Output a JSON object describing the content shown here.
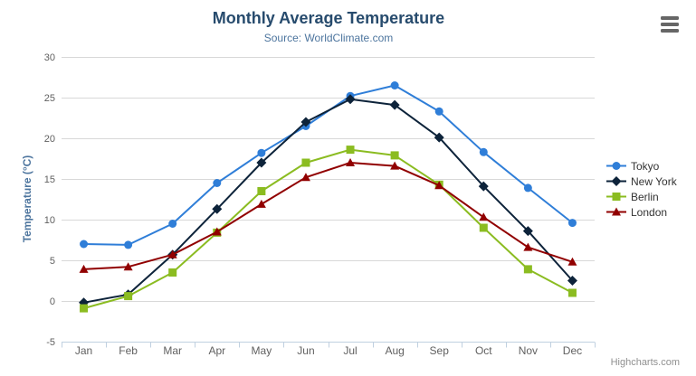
{
  "header": {
    "title": "Monthly Average Temperature",
    "subtitle": "Source: WorldClimate.com"
  },
  "credits": {
    "label": "Highcharts.com"
  },
  "chart_data": {
    "type": "line",
    "title": "Monthly Average Temperature",
    "subtitle": "Source: WorldClimate.com",
    "categories": [
      "Jan",
      "Feb",
      "Mar",
      "Apr",
      "May",
      "Jun",
      "Jul",
      "Aug",
      "Sep",
      "Oct",
      "Nov",
      "Dec"
    ],
    "series": [
      {
        "name": "Tokyo",
        "color": "#2f7ed8",
        "marker": "circle",
        "values": [
          7.0,
          6.9,
          9.5,
          14.5,
          18.2,
          21.5,
          25.2,
          26.5,
          23.3,
          18.3,
          13.9,
          9.6
        ]
      },
      {
        "name": "New York",
        "color": "#0d233a",
        "marker": "diamond",
        "values": [
          -0.2,
          0.8,
          5.7,
          11.3,
          17.0,
          22.0,
          24.8,
          24.1,
          20.1,
          14.1,
          8.6,
          2.5
        ]
      },
      {
        "name": "Berlin",
        "color": "#8bbc21",
        "marker": "square",
        "values": [
          -0.9,
          0.6,
          3.5,
          8.4,
          13.5,
          17.0,
          18.6,
          17.9,
          14.3,
          9.0,
          3.9,
          1.0
        ]
      },
      {
        "name": "London",
        "color": "#910000",
        "marker": "triangle",
        "values": [
          3.9,
          4.2,
          5.7,
          8.5,
          11.9,
          15.2,
          17.0,
          16.6,
          14.2,
          10.3,
          6.6,
          4.8
        ]
      }
    ],
    "xlabel": "",
    "ylabel": "Temperature (°C)",
    "ylim": [
      -5,
      30
    ],
    "yticks": [
      -5,
      0,
      5,
      10,
      15,
      20,
      25,
      30
    ],
    "grid": true,
    "legend_position": "right"
  },
  "colors": {
    "title": "#274b6d",
    "subtitle": "#4d759e",
    "axis_title": "#4d759e",
    "axis_labels": "#606060",
    "grid": "#d8d8d8",
    "axis_line": "#c0d0e0",
    "legend_text": "#333333",
    "credits": "#909090",
    "menu_icon": "#666666",
    "background": "#ffffff"
  }
}
